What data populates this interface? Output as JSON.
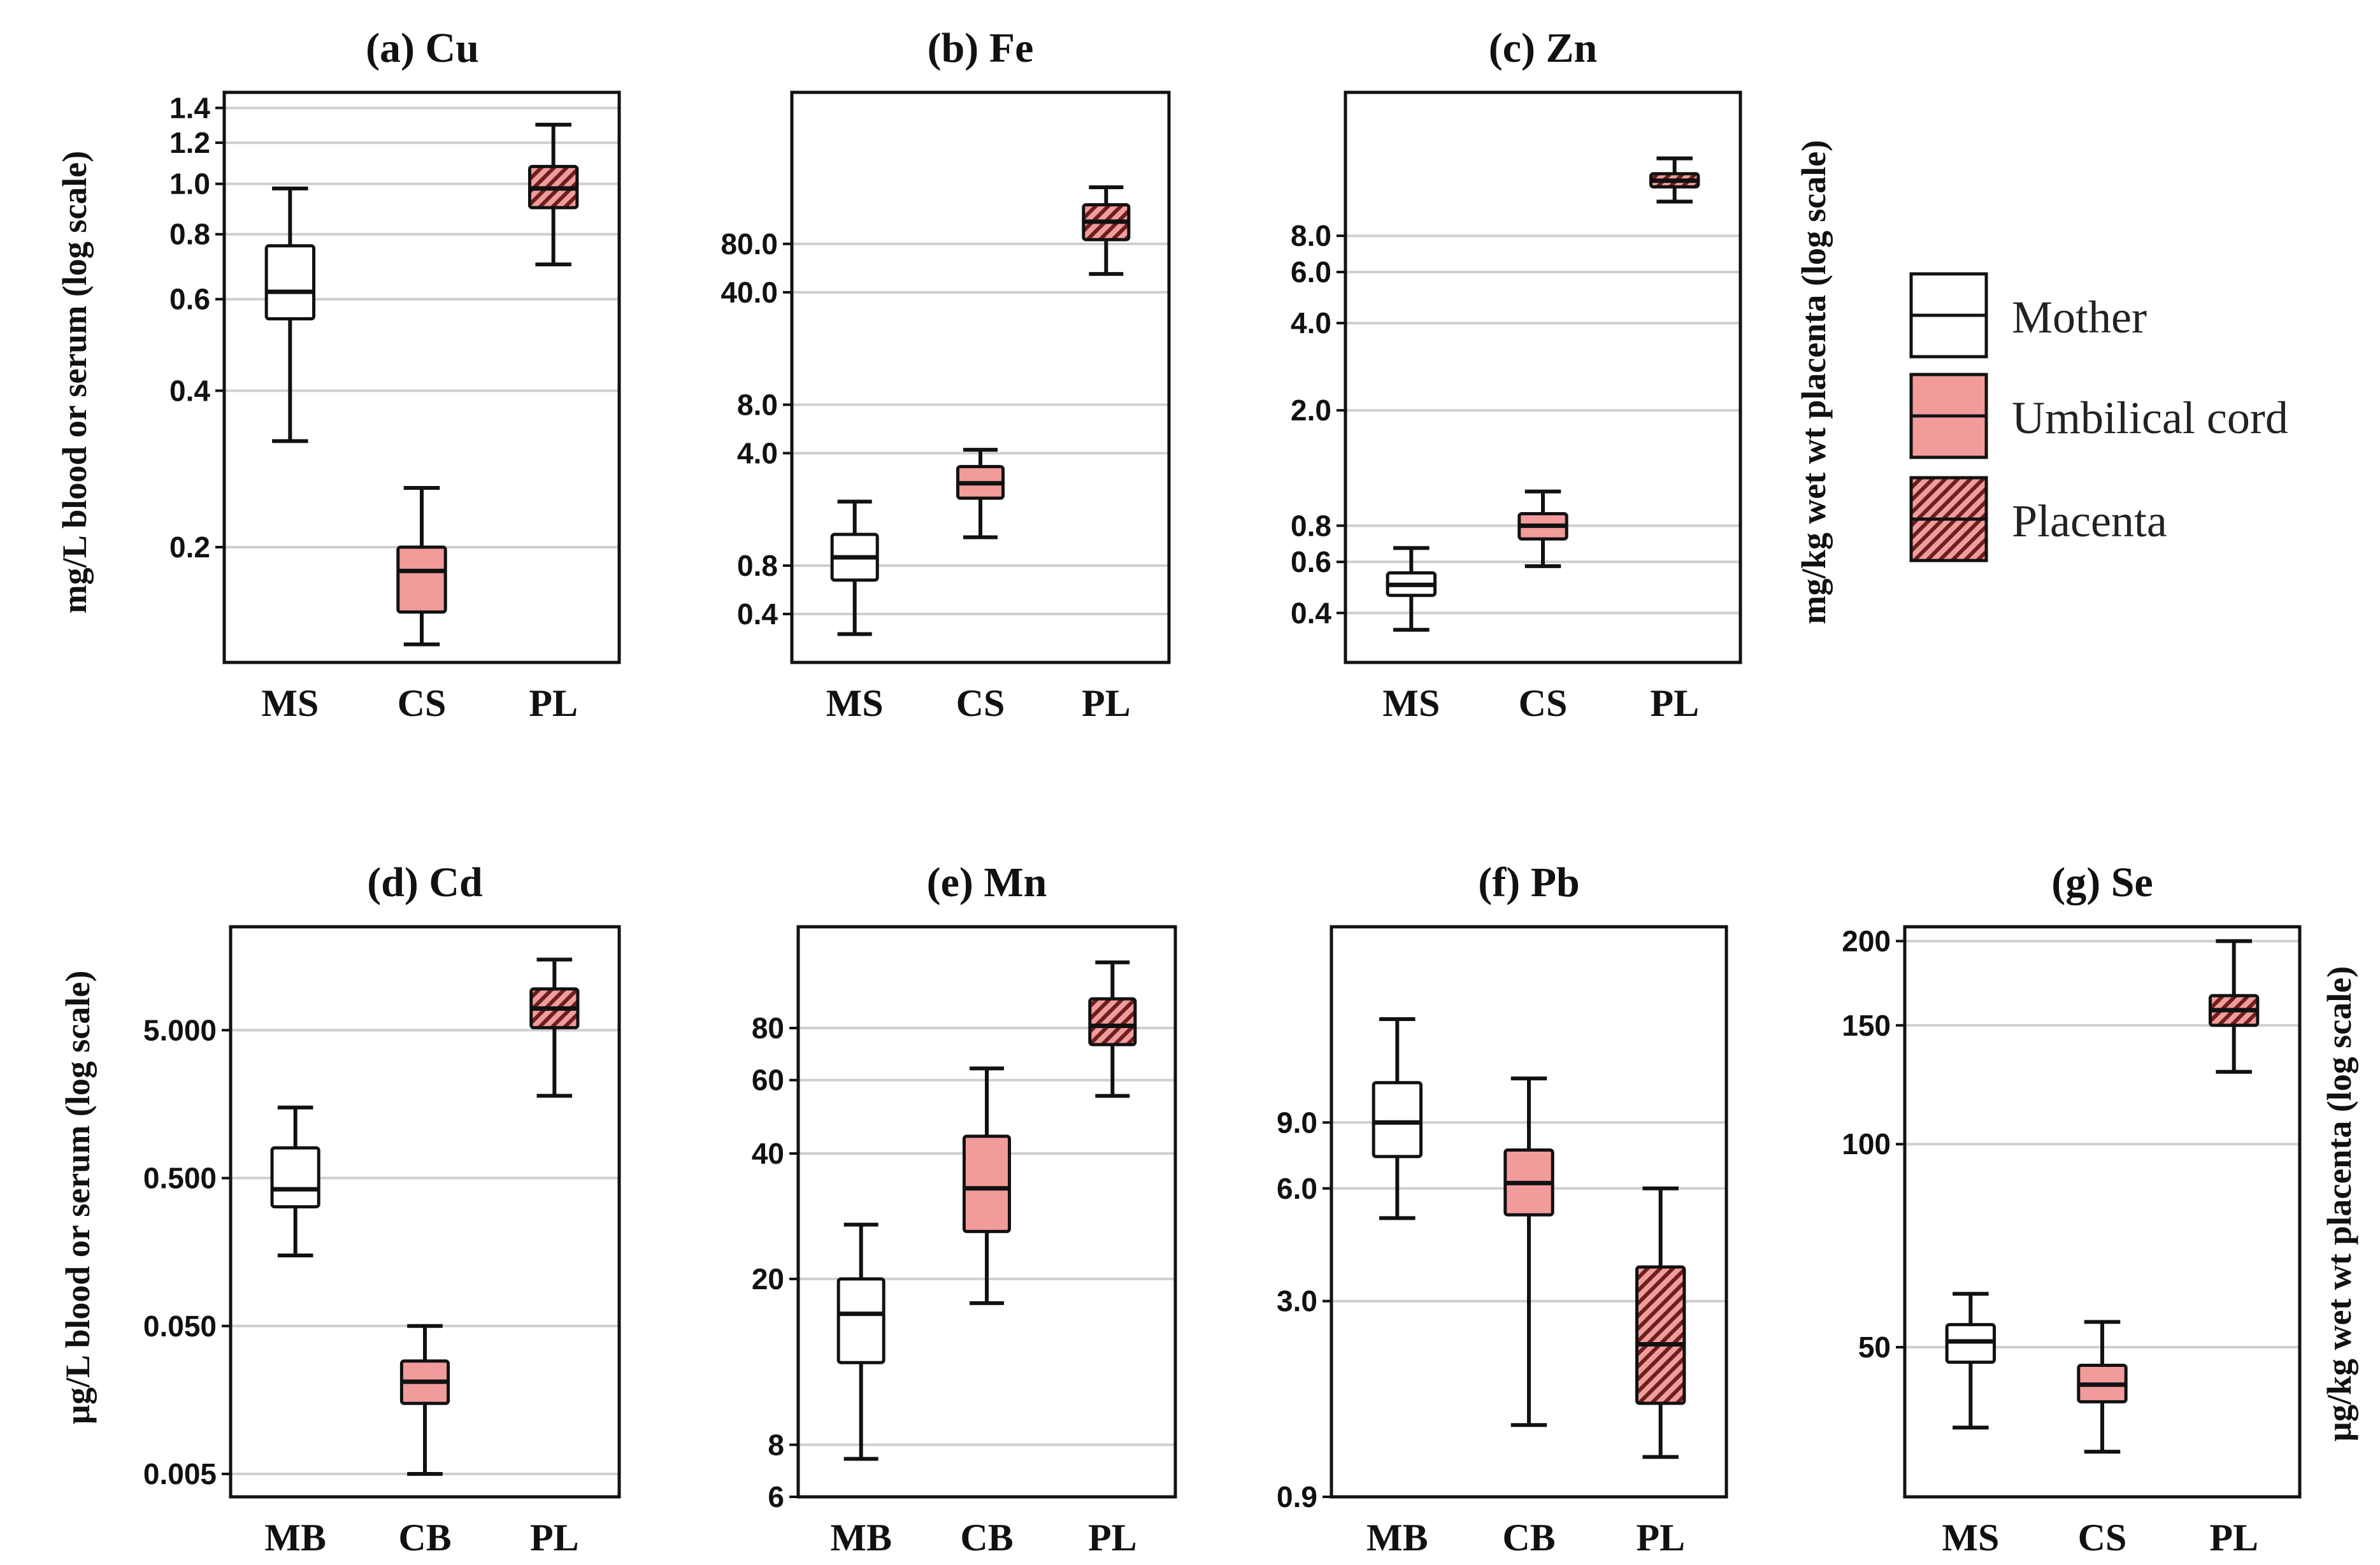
{
  "colors": {
    "mother": "#ffffff",
    "cord": "#f29b9b",
    "placenta": "#f29b9b",
    "hatch": "#6b1f1f",
    "grid": "#cfcfcf"
  },
  "axis_labels": {
    "top_left": "mg/L blood or serum (log scale)",
    "top_right": "mg/kg wet wt placenta (log scale)",
    "bottom_left": "µg/L blood or serum (log scale)",
    "bottom_right": "µg/kg wet wt placenta (log scale)"
  },
  "legend": [
    {
      "label": "Mother",
      "style": "mother"
    },
    {
      "label": "Umbilical cord",
      "style": "cord"
    },
    {
      "label": "Placenta",
      "style": "placenta"
    }
  ],
  "chart_data": [
    {
      "type": "box",
      "title": "(a) Cu",
      "categories": [
        "MS",
        "CS",
        "PL"
      ],
      "ylim": [
        0.12,
        1.5
      ],
      "yticks": [
        0.2,
        0.4,
        0.6,
        0.8,
        1.0,
        1.2,
        1.4
      ],
      "yticklabels": [
        "0.2",
        "0.4",
        "0.6",
        "0.8",
        "1.0",
        "1.2",
        "1.4"
      ],
      "boxes": [
        {
          "category": "MS",
          "style": "mother",
          "min": 0.32,
          "q1": 0.55,
          "median": 0.62,
          "q3": 0.76,
          "max": 0.98
        },
        {
          "category": "CS",
          "style": "cord",
          "min": 0.13,
          "q1": 0.15,
          "median": 0.18,
          "q3": 0.2,
          "max": 0.26
        },
        {
          "category": "PL",
          "style": "placenta",
          "min": 0.7,
          "q1": 0.9,
          "median": 0.98,
          "q3": 1.08,
          "max": 1.3
        }
      ]
    },
    {
      "type": "box",
      "title": "(b) Fe",
      "categories": [
        "MS",
        "CS",
        "PL"
      ],
      "ylim": [
        0.2,
        700
      ],
      "yticks": [
        0.4,
        0.8,
        4.0,
        8.0,
        40.0,
        80.0
      ],
      "yticklabels": [
        "0.4",
        "0.8",
        "4.0",
        "8.0",
        "40.0",
        "80.0"
      ],
      "boxes": [
        {
          "category": "MS",
          "style": "mother",
          "min": 0.3,
          "q1": 0.65,
          "median": 0.9,
          "q3": 1.25,
          "max": 2.0
        },
        {
          "category": "CS",
          "style": "cord",
          "min": 1.2,
          "q1": 2.1,
          "median": 2.6,
          "q3": 3.3,
          "max": 4.2
        },
        {
          "category": "PL",
          "style": "placenta",
          "min": 52,
          "q1": 85,
          "median": 110,
          "q3": 140,
          "max": 180
        }
      ]
    },
    {
      "type": "box",
      "title": "(c) Zn",
      "categories": [
        "MS",
        "CS",
        "PL"
      ],
      "ylim": [
        0.27,
        25
      ],
      "yticks": [
        0.4,
        0.6,
        0.8,
        2.0,
        4.0,
        6.0,
        8.0
      ],
      "yticklabels": [
        "0.4",
        "0.6",
        "0.8",
        "2.0",
        "4.0",
        "6.0",
        "8.0"
      ],
      "boxes": [
        {
          "category": "MS",
          "style": "mother",
          "min": 0.35,
          "q1": 0.46,
          "median": 0.5,
          "q3": 0.55,
          "max": 0.67
        },
        {
          "category": "CS",
          "style": "cord",
          "min": 0.58,
          "q1": 0.72,
          "median": 0.8,
          "q3": 0.88,
          "max": 1.05
        },
        {
          "category": "PL",
          "style": "placenta",
          "min": 10.5,
          "q1": 11.8,
          "median": 12.4,
          "q3": 13.1,
          "max": 14.8
        }
      ]
    },
    {
      "type": "box",
      "title": "(d) Cd",
      "categories": [
        "MB",
        "CB",
        "PL"
      ],
      "ylim": [
        0.0035,
        25
      ],
      "yticks": [
        0.005,
        0.05,
        0.5,
        5.0
      ],
      "yticklabels": [
        "0.005",
        "0.050",
        "0.500",
        "5.000"
      ],
      "boxes": [
        {
          "category": "MB",
          "style": "mother",
          "min": 0.15,
          "q1": 0.32,
          "median": 0.42,
          "q3": 0.8,
          "max": 1.5
        },
        {
          "category": "CB",
          "style": "cord",
          "min": 0.005,
          "q1": 0.015,
          "median": 0.021,
          "q3": 0.029,
          "max": 0.05
        },
        {
          "category": "PL",
          "style": "placenta",
          "min": 1.8,
          "q1": 5.2,
          "median": 7.0,
          "q3": 9.5,
          "max": 15
        }
      ]
    },
    {
      "type": "box",
      "title": "(e) Mn",
      "categories": [
        "MB",
        "CB",
        "PL"
      ],
      "ylim": [
        6,
        140
      ],
      "yticks": [
        6,
        8,
        20,
        40,
        60,
        80
      ],
      "yticklabels": [
        "6",
        "8",
        "20",
        "40",
        "60",
        "80"
      ],
      "boxes": [
        {
          "category": "MB",
          "style": "mother",
          "min": 7.4,
          "q1": 12.6,
          "median": 16.5,
          "q3": 20,
          "max": 27
        },
        {
          "category": "CB",
          "style": "cord",
          "min": 17.5,
          "q1": 26,
          "median": 33,
          "q3": 44,
          "max": 64
        },
        {
          "category": "PL",
          "style": "placenta",
          "min": 55,
          "q1": 73,
          "median": 81,
          "q3": 94,
          "max": 115
        }
      ]
    },
    {
      "type": "box",
      "title": "(f)  Pb",
      "categories": [
        "MB",
        "CB",
        "PL"
      ],
      "ylim": [
        0.9,
        30
      ],
      "yticks": [
        0.9,
        3.0,
        6.0,
        9.0
      ],
      "yticklabels": [
        "0.9",
        "3.0",
        "6.0",
        "9.0"
      ],
      "boxes": [
        {
          "category": "MB",
          "style": "mother",
          "min": 5.0,
          "q1": 7.3,
          "median": 9.0,
          "q3": 11.5,
          "max": 17
        },
        {
          "category": "CB",
          "style": "cord",
          "min": 1.4,
          "q1": 5.1,
          "median": 6.2,
          "q3": 7.6,
          "max": 11.8
        },
        {
          "category": "PL",
          "style": "placenta",
          "min": 1.15,
          "q1": 1.6,
          "median": 2.3,
          "q3": 3.7,
          "max": 6.0
        }
      ]
    },
    {
      "type": "box",
      "title": "(g)  Se",
      "categories": [
        "MS",
        "CS",
        "PL"
      ],
      "ylim": [
        30,
        210
      ],
      "yticks": [
        50,
        100,
        150,
        200
      ],
      "yticklabels": [
        "50",
        "100",
        "150",
        "200"
      ],
      "boxes": [
        {
          "category": "MS",
          "style": "mother",
          "min": 38,
          "q1": 47.5,
          "median": 51,
          "q3": 54,
          "max": 60
        },
        {
          "category": "CS",
          "style": "cord",
          "min": 35,
          "q1": 41.5,
          "median": 44,
          "q3": 47,
          "max": 54.5
        },
        {
          "category": "PL",
          "style": "placenta",
          "min": 128,
          "q1": 150,
          "median": 158,
          "q3": 166,
          "max": 200
        }
      ]
    }
  ]
}
